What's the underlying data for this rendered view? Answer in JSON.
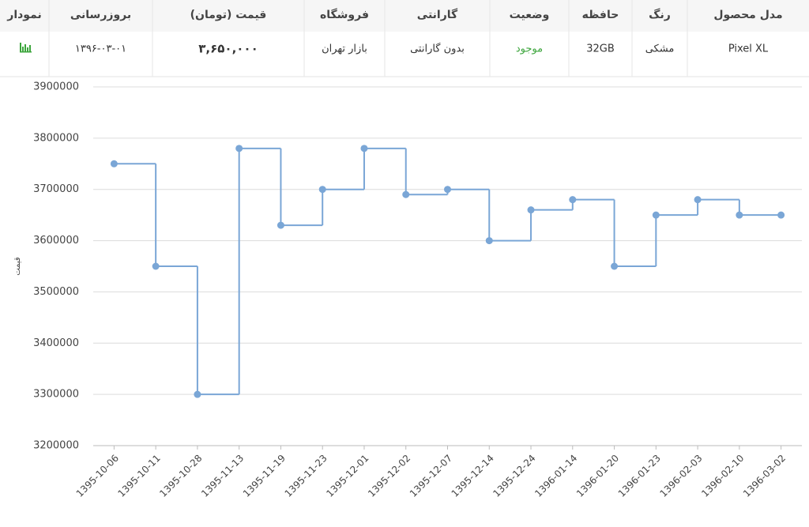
{
  "table": {
    "headers": [
      "مدل محصول",
      "رنگ",
      "حافظه",
      "وضعیت",
      "گارانتی",
      "فروشگاه",
      "قیمت   (تومان)",
      "بروزرسانی",
      "نمودار"
    ],
    "rows": [
      [
        "Pixel XL",
        "مشکی",
        "32GB",
        "موجود",
        "بدون گارانتی",
        "بازار تهران",
        "۳,۶۵۰,۰۰۰",
        "۱۳۹۶-۰۳-۰۱"
      ]
    ]
  },
  "chart_data": {
    "type": "line",
    "step": "after",
    "ylabel": "قیمت",
    "categories": [
      "1395-10-06",
      "1395-10-11",
      "1395-10-28",
      "1395-11-13",
      "1395-11-19",
      "1395-11-23",
      "1395-12-01",
      "1395-12-02",
      "1395-12-07",
      "1395-12-14",
      "1395-12-24",
      "1396-01-14",
      "1396-01-20",
      "1396-01-23",
      "1396-02-03",
      "1396-02-10",
      "1396-03-02"
    ],
    "series": [
      {
        "color": "#7aa6d6",
        "values": [
          3750000,
          3550000,
          3300000,
          3780000,
          3630000,
          3700000,
          3780000,
          3690000,
          3700000,
          3600000,
          3660000,
          3680000,
          3550000,
          3650000,
          3680000,
          3650000,
          3650000
        ]
      }
    ],
    "ylim": [
      3200000,
      3900000
    ],
    "yticks": [
      3200000,
      3300000,
      3400000,
      3500000,
      3600000,
      3700000,
      3800000,
      3900000
    ],
    "grid": true
  }
}
